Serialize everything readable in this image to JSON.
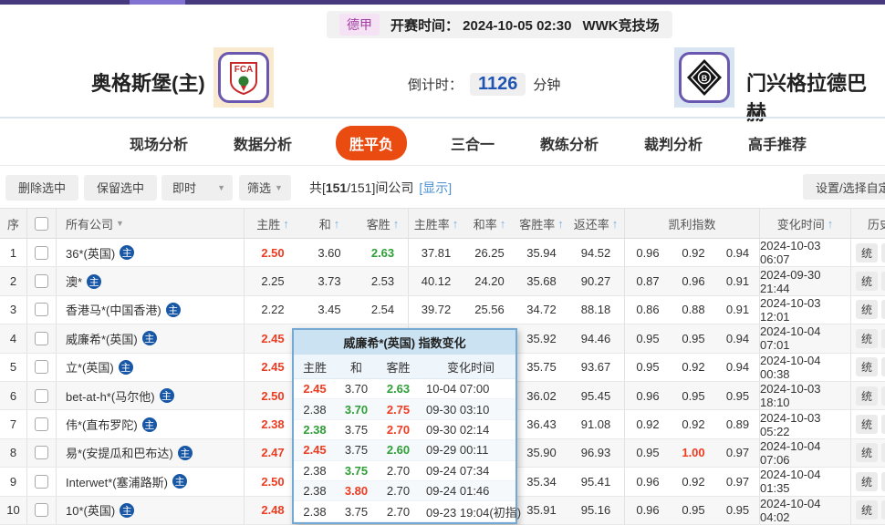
{
  "topbar": {
    "league": "德甲",
    "kickoff": "开赛时间： 2024-10-05 02:30",
    "venue": "WWK竞技场"
  },
  "match": {
    "home_name": "奥格斯堡(主)",
    "away_name": "门兴格拉德巴赫",
    "home_crest_text": "FCA",
    "away_crest_text": "B",
    "countdown_label": "倒计时：",
    "countdown_value": "1126",
    "countdown_unit": "分钟"
  },
  "nav": {
    "tabs": [
      {
        "label": "现场分析",
        "active": false
      },
      {
        "label": "数据分析",
        "active": false
      },
      {
        "label": "胜平负",
        "active": true
      },
      {
        "label": "三合一",
        "active": false
      },
      {
        "label": "教练分析",
        "active": false
      },
      {
        "label": "裁判分析",
        "active": false
      },
      {
        "label": "高手推荐",
        "active": false
      }
    ]
  },
  "toolbar": {
    "delete_btn": "删除选中",
    "keep_btn": "保留选中",
    "time_filter": "即时",
    "filter_btn": "筛选",
    "count_prefix": "共[",
    "count_bold": "151",
    "count_rest": "/151]间公司",
    "show_link": "[显示]",
    "settings_btn": "设置/选择自定义"
  },
  "icons": {
    "sort_up": "↑",
    "caret_down": "▼",
    "primary_badge": "主"
  },
  "table": {
    "headers": {
      "seq": "序",
      "company": "所有公司",
      "home": "主胜",
      "draw": "和",
      "away": "客胜",
      "home_rate": "主胜率",
      "draw_rate": "和率",
      "away_rate": "客胜率",
      "return_rate": "返还率",
      "kelly": "凯利指数",
      "change_time": "变化时间",
      "history": "历史"
    },
    "action_label": "统",
    "rows": [
      {
        "no": "1",
        "company": "36*(英国)",
        "odds": [
          {
            "v": "2.50",
            "t": "up"
          },
          {
            "v": "3.60",
            "t": ""
          },
          {
            "v": "2.63",
            "t": "down"
          }
        ],
        "rates": [
          "37.81",
          "26.25",
          "35.94",
          "94.52"
        ],
        "kelly": [
          {
            "v": "0.96",
            "t": ""
          },
          {
            "v": "0.92",
            "t": ""
          },
          {
            "v": "0.94",
            "t": ""
          }
        ],
        "time": "2024-10-03 06:07"
      },
      {
        "no": "2",
        "company": "澳*",
        "odds": [
          {
            "v": "2.25",
            "t": ""
          },
          {
            "v": "3.73",
            "t": ""
          },
          {
            "v": "2.53",
            "t": ""
          }
        ],
        "rates": [
          "40.12",
          "24.20",
          "35.68",
          "90.27"
        ],
        "kelly": [
          {
            "v": "0.87",
            "t": ""
          },
          {
            "v": "0.96",
            "t": ""
          },
          {
            "v": "0.91",
            "t": ""
          }
        ],
        "time": "2024-09-30 21:44"
      },
      {
        "no": "3",
        "company": "香港马*(中国香港)",
        "odds": [
          {
            "v": "2.22",
            "t": ""
          },
          {
            "v": "3.45",
            "t": ""
          },
          {
            "v": "2.54",
            "t": ""
          }
        ],
        "rates": [
          "39.72",
          "25.56",
          "34.72",
          "88.18"
        ],
        "kelly": [
          {
            "v": "0.86",
            "t": ""
          },
          {
            "v": "0.88",
            "t": ""
          },
          {
            "v": "0.91",
            "t": ""
          }
        ],
        "time": "2024-10-03 12:01"
      },
      {
        "no": "4",
        "company": "威廉希*(英国)",
        "odds": [
          {
            "v": "2.45",
            "t": "up"
          },
          {
            "v": "",
            "t": ""
          },
          {
            "v": "",
            "t": ""
          }
        ],
        "rates": [
          "",
          "",
          "35.92",
          "94.46"
        ],
        "kelly": [
          {
            "v": "0.95",
            "t": ""
          },
          {
            "v": "0.95",
            "t": ""
          },
          {
            "v": "0.94",
            "t": ""
          }
        ],
        "time": "2024-10-04 07:01"
      },
      {
        "no": "5",
        "company": "立*(英国)",
        "odds": [
          {
            "v": "2.45",
            "t": "up"
          },
          {
            "v": "",
            "t": ""
          },
          {
            "v": "",
            "t": ""
          }
        ],
        "rates": [
          "",
          "",
          "35.75",
          "93.67"
        ],
        "kelly": [
          {
            "v": "0.95",
            "t": ""
          },
          {
            "v": "0.92",
            "t": ""
          },
          {
            "v": "0.94",
            "t": ""
          }
        ],
        "time": "2024-10-04 00:38"
      },
      {
        "no": "6",
        "company": "bet-at-h*(马尔他)",
        "odds": [
          {
            "v": "2.50",
            "t": "up"
          },
          {
            "v": "",
            "t": ""
          },
          {
            "v": "",
            "t": ""
          }
        ],
        "rates": [
          "",
          "",
          "36.02",
          "95.45"
        ],
        "kelly": [
          {
            "v": "0.96",
            "t": ""
          },
          {
            "v": "0.95",
            "t": ""
          },
          {
            "v": "0.95",
            "t": ""
          }
        ],
        "time": "2024-10-03 18:10"
      },
      {
        "no": "7",
        "company": "伟*(直布罗陀)",
        "odds": [
          {
            "v": "2.38",
            "t": "up"
          },
          {
            "v": "",
            "t": ""
          },
          {
            "v": "",
            "t": ""
          }
        ],
        "rates": [
          "",
          "",
          "36.43",
          "91.08"
        ],
        "kelly": [
          {
            "v": "0.92",
            "t": ""
          },
          {
            "v": "0.92",
            "t": ""
          },
          {
            "v": "0.89",
            "t": ""
          }
        ],
        "time": "2024-10-03 05:22"
      },
      {
        "no": "8",
        "company": "易*(安提瓜和巴布达)",
        "odds": [
          {
            "v": "2.47",
            "t": "up"
          },
          {
            "v": "",
            "t": ""
          },
          {
            "v": "",
            "t": ""
          }
        ],
        "rates": [
          "",
          "",
          "35.90",
          "96.93"
        ],
        "kelly": [
          {
            "v": "0.95",
            "t": ""
          },
          {
            "v": "1.00",
            "t": "up"
          },
          {
            "v": "0.97",
            "t": ""
          }
        ],
        "time": "2024-10-04 07:06"
      },
      {
        "no": "9",
        "company": "Interwet*(塞浦路斯)",
        "odds": [
          {
            "v": "2.50",
            "t": "up"
          },
          {
            "v": "",
            "t": ""
          },
          {
            "v": "",
            "t": ""
          }
        ],
        "rates": [
          "",
          "",
          "35.34",
          "95.41"
        ],
        "kelly": [
          {
            "v": "0.96",
            "t": ""
          },
          {
            "v": "0.92",
            "t": ""
          },
          {
            "v": "0.97",
            "t": ""
          }
        ],
        "time": "2024-10-04 01:35"
      },
      {
        "no": "10",
        "company": "10*(英国)",
        "odds": [
          {
            "v": "2.48",
            "t": "up"
          },
          {
            "v": "",
            "t": ""
          },
          {
            "v": "",
            "t": ""
          }
        ],
        "rates": [
          "",
          "",
          "35.91",
          "95.16"
        ],
        "kelly": [
          {
            "v": "0.96",
            "t": ""
          },
          {
            "v": "0.95",
            "t": ""
          },
          {
            "v": "0.95",
            "t": ""
          }
        ],
        "time": "2024-10-04 04:02"
      }
    ]
  },
  "popup": {
    "title": "威廉希*(英国) 指数变化",
    "headers": {
      "home": "主胜",
      "draw": "和",
      "away": "客胜",
      "time": "变化时间"
    },
    "rows": [
      {
        "home": {
          "v": "2.45",
          "t": "up"
        },
        "draw": {
          "v": "3.70",
          "t": ""
        },
        "away": {
          "v": "2.63",
          "t": "down"
        },
        "time": "10-04 07:00"
      },
      {
        "home": {
          "v": "2.38",
          "t": ""
        },
        "draw": {
          "v": "3.70",
          "t": "down"
        },
        "away": {
          "v": "2.75",
          "t": "up"
        },
        "time": "09-30 03:10"
      },
      {
        "home": {
          "v": "2.38",
          "t": "down"
        },
        "draw": {
          "v": "3.75",
          "t": ""
        },
        "away": {
          "v": "2.70",
          "t": "up"
        },
        "time": "09-30 02:14"
      },
      {
        "home": {
          "v": "2.45",
          "t": "up"
        },
        "draw": {
          "v": "3.75",
          "t": ""
        },
        "away": {
          "v": "2.60",
          "t": "down"
        },
        "time": "09-29 00:11"
      },
      {
        "home": {
          "v": "2.38",
          "t": ""
        },
        "draw": {
          "v": "3.75",
          "t": "down"
        },
        "away": {
          "v": "2.70",
          "t": ""
        },
        "time": "09-24 07:34"
      },
      {
        "home": {
          "v": "2.38",
          "t": ""
        },
        "draw": {
          "v": "3.80",
          "t": "up"
        },
        "away": {
          "v": "2.70",
          "t": ""
        },
        "time": "09-24 01:46"
      },
      {
        "home": {
          "v": "2.38",
          "t": ""
        },
        "draw": {
          "v": "3.75",
          "t": ""
        },
        "away": {
          "v": "2.70",
          "t": ""
        },
        "time": "09-23 19:04(初指)"
      }
    ]
  },
  "colors": {
    "accent_orange": "#e94b10",
    "odds_up_red": "#f03b20",
    "odds_down_green": "#2e9e36",
    "countdown_blue": "#2155b4",
    "link_blue": "#4a8fd4",
    "strip_purple": "#46397e"
  }
}
